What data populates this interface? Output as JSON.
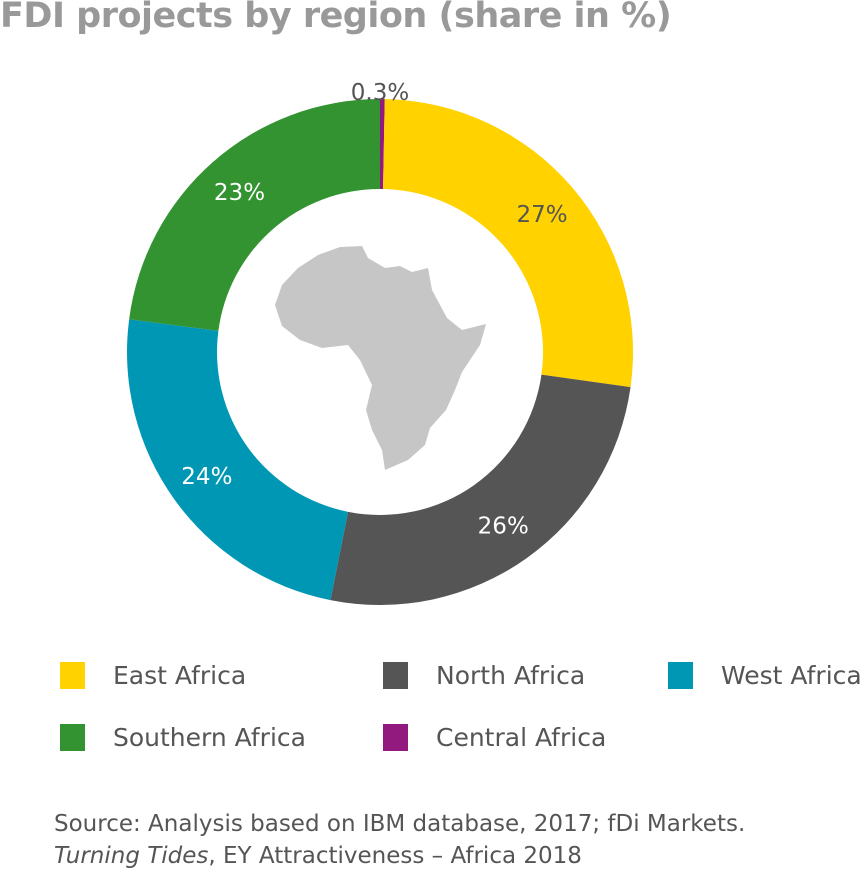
{
  "chart_data": {
    "type": "pie",
    "donut": true,
    "title": "FDI projects by region (share in %)",
    "categories": [
      "Central Africa",
      "East Africa",
      "North Africa",
      "West Africa",
      "Southern Africa"
    ],
    "values": [
      0.3,
      27,
      26,
      24,
      23
    ],
    "labels": [
      "0.3%",
      "27%",
      "26%",
      "24%",
      "23%"
    ],
    "colors": [
      "#921a7e",
      "#ffd200",
      "#555555",
      "#0097b5",
      "#339331"
    ],
    "label_colors": [
      "#555555",
      "#555555",
      "#ffffff",
      "#ffffff",
      "#ffffff"
    ],
    "center_image": "africa-map-silhouette",
    "legend": {
      "placement": "bottom",
      "entries": [
        {
          "label": "East Africa",
          "color": "#ffd200"
        },
        {
          "label": "North Africa",
          "color": "#555555"
        },
        {
          "label": "West Africa",
          "color": "#0097b5"
        },
        {
          "label": "Southern Africa",
          "color": "#339331"
        },
        {
          "label": "Central Africa",
          "color": "#921a7e"
        }
      ]
    }
  },
  "source": {
    "line1": "Source: Analysis based on IBM database, 2017; fDi Markets.",
    "line2_italic": "Turning Tides",
    "line2_rest": ", EY Attractiveness – Africa 2018"
  }
}
